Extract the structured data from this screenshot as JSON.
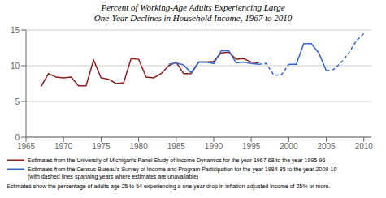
{
  "chart_data": {
    "type": "line",
    "title": "Percent of Working-Age Adults Experiencing Large\nOne-Year Declines in Household Income, 1967 to 2010",
    "annotations": [
      "Estimates show the percentage of adults age 25 to 54 experiencing a one-year drop in inflation-adjusted income of 25% or more."
    ],
    "x": [
      1967,
      1968,
      1969,
      1970,
      1971,
      1972,
      1973,
      1974,
      1975,
      1976,
      1977,
      1978,
      1979,
      1980,
      1981,
      1982,
      1983,
      1984,
      1985,
      1986,
      1987,
      1988,
      1989,
      1990,
      1991,
      1992,
      1993,
      1994,
      1995,
      1996,
      1997,
      1998,
      1999,
      2000,
      2001,
      2002,
      2003,
      2004,
      2005,
      2006,
      2007,
      2008,
      2009,
      2010
    ],
    "xlim": [
      1965,
      2011
    ],
    "xticks": [
      1965,
      1970,
      1975,
      1980,
      1985,
      1990,
      1995,
      2000,
      2005,
      2010
    ],
    "ylim": [
      0,
      15
    ],
    "yticks": [
      0,
      5,
      10,
      15
    ],
    "grid": true,
    "series": [
      {
        "name": "Estimates from the University of Michigan's Panel Study of Income Dynamics for the year 1967-68 to the year 1995-96",
        "color": "#8B1A1A",
        "line_style": "solid",
        "values": [
          7.1,
          8.9,
          8.4,
          8.3,
          8.4,
          7.2,
          7.2,
          10.8,
          8.3,
          8.1,
          7.5,
          7.6,
          11.0,
          10.9,
          8.4,
          8.3,
          8.9,
          10.0,
          10.5,
          8.9,
          8.9,
          10.5,
          10.5,
          10.6,
          11.8,
          11.9,
          10.9,
          11.0,
          10.5,
          10.4,
          null,
          null,
          null,
          null,
          null,
          null,
          null,
          null,
          null,
          null,
          null,
          null,
          null,
          null
        ]
      },
      {
        "name": "Estimates from the Census Bureau's Survey of Income and Program Participation for the year 1984-85 to the year 2009-10\n(with dashed lines spanning years where estimates are unavailable)",
        "color": "#3366CC",
        "line_style": "solid",
        "values": [
          null,
          null,
          null,
          null,
          null,
          null,
          null,
          null,
          null,
          null,
          null,
          null,
          null,
          null,
          null,
          null,
          null,
          10.2,
          10.4,
          10.1,
          9.0,
          10.5,
          10.5,
          10.3,
          12.1,
          12.1,
          10.4,
          10.5,
          10.3,
          10.2,
          null,
          null,
          null,
          10.2,
          10.2,
          13.1,
          13.1,
          11.8,
          9.3,
          null,
          null,
          null,
          null,
          null
        ]
      },
      {
        "color": "#3366CC",
        "line_style": "dashed",
        "values": [
          null,
          null,
          null,
          null,
          null,
          null,
          null,
          null,
          null,
          null,
          null,
          null,
          null,
          null,
          null,
          null,
          null,
          null,
          null,
          null,
          null,
          null,
          null,
          null,
          null,
          null,
          null,
          null,
          null,
          10.2,
          10.3,
          8.7,
          8.7,
          10.2,
          null,
          null,
          null,
          null,
          9.3,
          9.5,
          10.5,
          11.8,
          13.5,
          14.5
        ]
      }
    ]
  }
}
